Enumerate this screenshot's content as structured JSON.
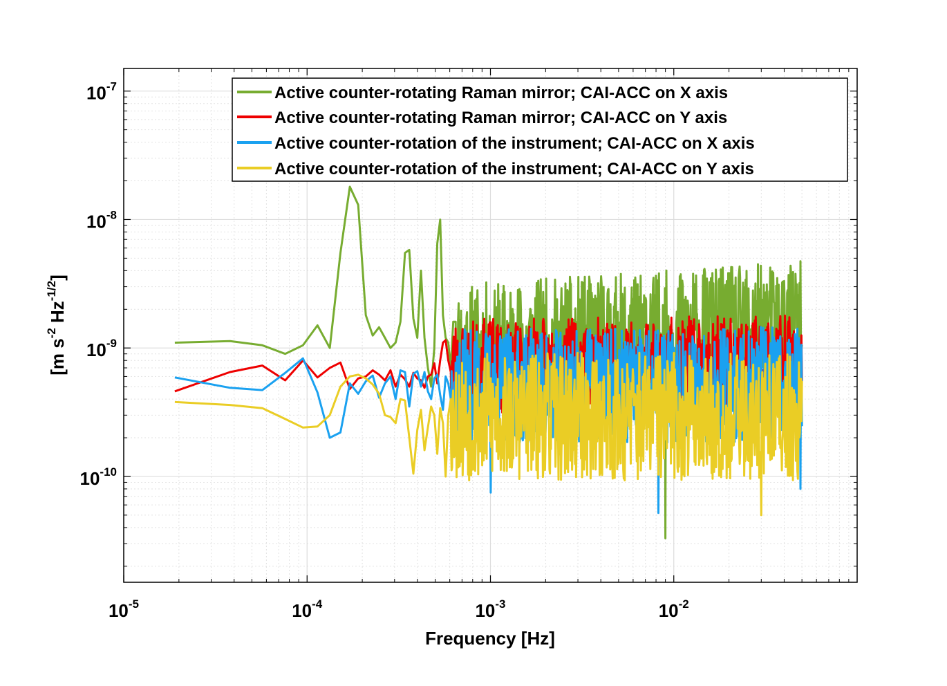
{
  "chart_data": {
    "type": "line",
    "xscale": "log",
    "yscale": "log",
    "xlabel": "Frequency  [Hz]",
    "ylabel": {
      "base": "[m s",
      "exp1": "-2",
      "mid": " Hz",
      "exp2": "-1/2",
      "end": "]"
    },
    "xlim": [
      1e-05,
      0.1
    ],
    "ylim": [
      1.5e-11,
      1.5e-07
    ],
    "grid": true,
    "legend_position": "top-right",
    "x_ticks": [
      {
        "base": "10",
        "exp": "-5",
        "value": 1e-05
      },
      {
        "base": "10",
        "exp": "-4",
        "value": 0.0001
      },
      {
        "base": "10",
        "exp": "-3",
        "value": 0.001
      },
      {
        "base": "10",
        "exp": "-2",
        "value": 0.01
      }
    ],
    "y_ticks": [
      {
        "base": "10",
        "exp": "-10",
        "value": 1e-10
      },
      {
        "base": "10",
        "exp": "-9",
        "value": 1e-09
      },
      {
        "base": "10",
        "exp": "-8",
        "value": 1e-08
      },
      {
        "base": "10",
        "exp": "-7",
        "value": 1e-07
      }
    ],
    "series": [
      {
        "name": "Active counter-rotating Raman mirror; CAI-ACC on X axis",
        "color": "#77AC30",
        "points": [
          [
            1.9e-05,
            1.1e-09
          ],
          [
            3.8e-05,
            1.13e-09
          ],
          [
            5.7e-05,
            1.05e-09
          ],
          [
            7.6e-05,
            9e-10
          ],
          [
            9.5e-05,
            1.05e-09
          ],
          [
            0.000114,
            1.5e-09
          ],
          [
            0.000133,
            1e-09
          ],
          [
            0.000152,
            5.5e-09
          ],
          [
            0.000171,
            1.8e-08
          ],
          [
            0.00019,
            1.3e-08
          ],
          [
            0.000209,
            1.8e-09
          ],
          [
            0.000228,
            1.25e-09
          ],
          [
            0.000247,
            1.45e-09
          ],
          [
            0.000266,
            1.2e-09
          ],
          [
            0.000285,
            1e-09
          ],
          [
            0.000304,
            1.1e-09
          ],
          [
            0.000323,
            1.6e-09
          ],
          [
            0.000342,
            5.5e-09
          ],
          [
            0.000361,
            5.8e-09
          ],
          [
            0.00038,
            1.7e-09
          ],
          [
            0.000399,
            1.2e-09
          ],
          [
            0.000418,
            4e-09
          ],
          [
            0.000437,
            1.2e-09
          ],
          [
            0.000456,
            7e-10
          ],
          [
            0.000475,
            5e-10
          ],
          [
            0.000494,
            1e-09
          ],
          [
            0.000513,
            6.5e-09
          ],
          [
            0.000532,
            1e-08
          ],
          [
            0.000551,
            1.8e-09
          ],
          [
            0.00057,
            1.2e-09
          ],
          [
            0.000589,
            1.1e-09
          ],
          [
            0.000608,
            7e-10
          ],
          [
            0.000627,
            1.6e-09
          ],
          [
            0.000646,
            1.6e-09
          ]
        ],
        "noise": {
          "f_start": 0.00065,
          "f_end": 0.05,
          "n": 700,
          "base_start": 1e-09,
          "base_end": 1.5e-09,
          "spread": 0.5,
          "seed": 11,
          "spikes": [
            [
              0.00105,
              2.8e-09
            ],
            [
              0.0018,
              2.4e-09
            ],
            [
              0.009,
              3.3e-11
            ]
          ]
        }
      },
      {
        "name": "Active counter-rotating Raman mirror; CAI-ACC on Y axis",
        "color": "#EE0000",
        "points": [
          [
            1.9e-05,
            4.6e-10
          ],
          [
            3.8e-05,
            6.5e-10
          ],
          [
            5.7e-05,
            7.3e-10
          ],
          [
            7.6e-05,
            5.6e-10
          ],
          [
            9.5e-05,
            8e-10
          ],
          [
            0.000114,
            5.9e-10
          ],
          [
            0.000133,
            7e-10
          ],
          [
            0.000152,
            7.7e-10
          ],
          [
            0.000171,
            4.8e-10
          ],
          [
            0.00019,
            5.8e-10
          ],
          [
            0.000209,
            6e-10
          ],
          [
            0.000228,
            6.7e-10
          ],
          [
            0.000247,
            6.2e-10
          ],
          [
            0.000266,
            5.6e-10
          ],
          [
            0.000285,
            6.7e-10
          ],
          [
            0.000304,
            5e-10
          ],
          [
            0.000323,
            6.2e-10
          ],
          [
            0.000342,
            5.7e-10
          ],
          [
            0.000361,
            5e-10
          ],
          [
            0.00038,
            6.4e-10
          ],
          [
            0.000399,
            5.8e-10
          ],
          [
            0.000418,
            5.6e-10
          ],
          [
            0.000437,
            4.9e-10
          ],
          [
            0.000456,
            6e-10
          ],
          [
            0.000475,
            6.2e-10
          ],
          [
            0.000494,
            7.6e-10
          ],
          [
            0.000513,
            5.3e-10
          ],
          [
            0.000532,
            8e-10
          ],
          [
            0.000551,
            1.1e-09
          ],
          [
            0.00057,
            1.15e-09
          ],
          [
            0.000589,
            8e-10
          ],
          [
            0.000608,
            6.5e-10
          ]
        ],
        "noise": {
          "f_start": 0.00061,
          "f_end": 0.05,
          "n": 700,
          "base_start": 7e-10,
          "base_end": 7.5e-10,
          "spread": 0.38,
          "seed": 23,
          "spikes": [
            [
              0.00078,
              1.2e-09
            ],
            [
              0.0013,
              1.2e-09
            ]
          ]
        }
      },
      {
        "name": "Active counter-rotation of the instrument; CAI-ACC on X axis",
        "color": "#1AA1F0",
        "points": [
          [
            1.9e-05,
            5.9e-10
          ],
          [
            3.8e-05,
            4.9e-10
          ],
          [
            5.7e-05,
            4.7e-10
          ],
          [
            7.6e-05,
            6.4e-10
          ],
          [
            9.5e-05,
            8.3e-10
          ],
          [
            0.000114,
            4.5e-10
          ],
          [
            0.000133,
            2e-10
          ],
          [
            0.000152,
            2.2e-10
          ],
          [
            0.000171,
            5.3e-10
          ],
          [
            0.00019,
            4.4e-10
          ],
          [
            0.000209,
            5.5e-10
          ],
          [
            0.000228,
            6.1e-10
          ],
          [
            0.000247,
            4.1e-10
          ],
          [
            0.000266,
            5.3e-10
          ],
          [
            0.000285,
            6e-10
          ],
          [
            0.000304,
            4e-10
          ],
          [
            0.000323,
            6.7e-10
          ],
          [
            0.000342,
            6.5e-10
          ],
          [
            0.000361,
            3.5e-10
          ],
          [
            0.00038,
            6.3e-10
          ],
          [
            0.000399,
            6.6e-10
          ],
          [
            0.000418,
            5e-10
          ],
          [
            0.000437,
            6.5e-10
          ],
          [
            0.000456,
            4.6e-10
          ],
          [
            0.000475,
            4e-10
          ],
          [
            0.000494,
            5.8e-10
          ],
          [
            0.000513,
            6.2e-10
          ],
          [
            0.000532,
            4.3e-10
          ],
          [
            0.000551,
            3.3e-10
          ],
          [
            0.00057,
            6e-10
          ],
          [
            0.000589,
            5.3e-10
          ],
          [
            0.000608,
            4e-10
          ]
        ],
        "noise": {
          "f_start": 0.00061,
          "f_end": 0.05,
          "n": 700,
          "base_start": 5e-10,
          "base_end": 5.2e-10,
          "spread": 0.45,
          "seed": 37,
          "spikes": [
            [
              0.001,
              7.5e-11
            ],
            [
              0.0082,
              5.2e-11
            ],
            [
              0.049,
              8e-11
            ]
          ]
        }
      },
      {
        "name": "Active counter-rotation of the instrument; CAI-ACC on Y axis",
        "color": "#EACD25",
        "points": [
          [
            1.9e-05,
            3.8e-10
          ],
          [
            3.8e-05,
            3.6e-10
          ],
          [
            5.7e-05,
            3.4e-10
          ],
          [
            7.6e-05,
            2.8e-10
          ],
          [
            9.5e-05,
            2.4e-10
          ],
          [
            0.000114,
            2.45e-10
          ],
          [
            0.000133,
            3e-10
          ],
          [
            0.000152,
            5e-10
          ],
          [
            0.000171,
            6e-10
          ],
          [
            0.00019,
            6.2e-10
          ],
          [
            0.000209,
            5.8e-10
          ],
          [
            0.000228,
            5.2e-10
          ],
          [
            0.000247,
            4.4e-10
          ],
          [
            0.000266,
            3e-10
          ],
          [
            0.000285,
            2.9e-10
          ],
          [
            0.000304,
            2.6e-10
          ],
          [
            0.000323,
            4e-10
          ],
          [
            0.000342,
            3.9e-10
          ],
          [
            0.000361,
            2e-10
          ],
          [
            0.00038,
            1.05e-10
          ],
          [
            0.000399,
            2.3e-10
          ],
          [
            0.000418,
            3.3e-10
          ],
          [
            0.000437,
            1.6e-10
          ],
          [
            0.000456,
            2.4e-10
          ],
          [
            0.000475,
            3.5e-10
          ],
          [
            0.000494,
            3e-10
          ],
          [
            0.000513,
            1.5e-10
          ],
          [
            0.000532,
            3.4e-10
          ],
          [
            0.000551,
            2.6e-10
          ],
          [
            0.00057,
            1e-10
          ],
          [
            0.000589,
            3e-10
          ],
          [
            0.000608,
            4e-10
          ]
        ],
        "noise": {
          "f_start": 0.00061,
          "f_end": 0.05,
          "n": 700,
          "base_start": 2.9e-10,
          "base_end": 2.9e-10,
          "spread": 0.5,
          "seed": 53,
          "spikes": [
            [
              0.03,
              5e-11
            ],
            [
              0.049,
              4.3e-10
            ]
          ]
        }
      }
    ]
  }
}
